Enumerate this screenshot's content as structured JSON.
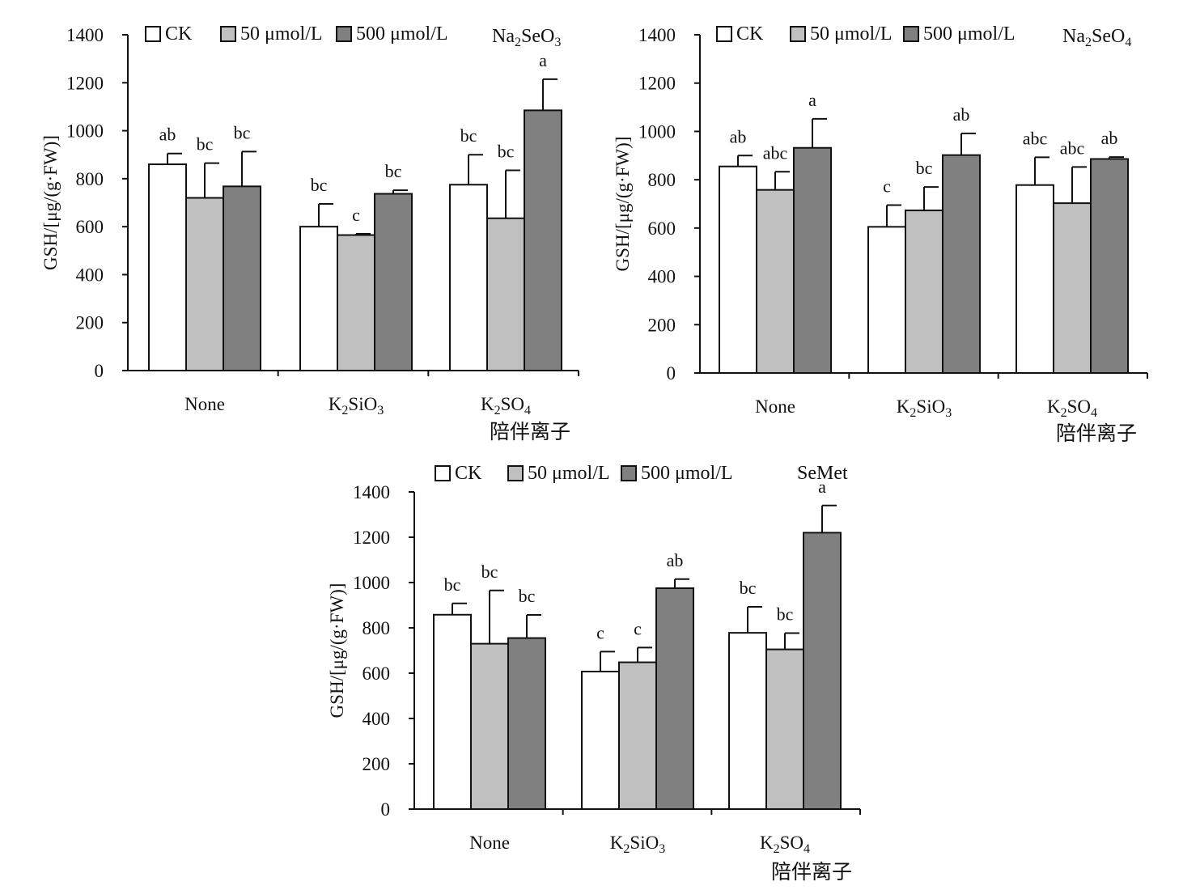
{
  "chart_data": [
    {
      "type": "bar",
      "title": "Na2SeO3",
      "ylabel": "GSH/[μg/(g·FW)]",
      "xlabel": "陪伴离子",
      "ylim": [
        0,
        1400
      ],
      "yticks": [
        0,
        200,
        400,
        600,
        800,
        1000,
        1200,
        1400
      ],
      "categories": [
        "None",
        "K2SiO3",
        "K2SO4"
      ],
      "grid": false,
      "legend": "top-left",
      "series": [
        {
          "name": "CK",
          "values": [
            860,
            600,
            775
          ],
          "errors": [
            45,
            95,
            125
          ],
          "labels": [
            "ab",
            "bc",
            "bc"
          ],
          "color": "#ffffff"
        },
        {
          "name": "50 μmol/L",
          "values": [
            720,
            565,
            635
          ],
          "errors": [
            145,
            5,
            200
          ],
          "labels": [
            "bc",
            "c",
            "bc"
          ],
          "color": "#c0c0c0"
        },
        {
          "name": "500 μmol/L",
          "values": [
            768,
            737,
            1085
          ],
          "errors": [
            145,
            15,
            130
          ],
          "labels": [
            "bc",
            "bc",
            "a"
          ],
          "color": "#808080"
        }
      ]
    },
    {
      "type": "bar",
      "title": "Na2SeO4",
      "ylabel": "GSH/[μg/(g·FW)]",
      "xlabel": "陪伴离子",
      "ylim": [
        0,
        1400
      ],
      "yticks": [
        0,
        200,
        400,
        600,
        800,
        1000,
        1200,
        1400
      ],
      "categories": [
        "None",
        "K2SiO3",
        "K2SO4"
      ],
      "grid": false,
      "legend": "top-left",
      "series": [
        {
          "name": "CK",
          "values": [
            855,
            605,
            778
          ],
          "errors": [
            45,
            90,
            115
          ],
          "labels": [
            "ab",
            "c",
            "abc"
          ],
          "color": "#ffffff"
        },
        {
          "name": "50 μmol/L",
          "values": [
            758,
            673,
            703
          ],
          "errors": [
            75,
            97,
            150
          ],
          "labels": [
            "abc",
            "bc",
            "abc"
          ],
          "color": "#c0c0c0"
        },
        {
          "name": "500 μmol/L",
          "values": [
            932,
            902,
            886
          ],
          "errors": [
            120,
            90,
            8
          ],
          "labels": [
            "a",
            "ab",
            "ab"
          ],
          "color": "#808080"
        }
      ]
    },
    {
      "type": "bar",
      "title": "SeMet",
      "ylabel": "GSH/[μg/(g·FW)]",
      "xlabel": "陪伴离子",
      "ylim": [
        0,
        1400
      ],
      "yticks": [
        0,
        200,
        400,
        600,
        800,
        1000,
        1200,
        1400
      ],
      "categories": [
        "None",
        "K2SiO3",
        "K2SO4"
      ],
      "grid": false,
      "legend": "top-left",
      "series": [
        {
          "name": "CK",
          "values": [
            858,
            607,
            778
          ],
          "errors": [
            50,
            88,
            115
          ],
          "labels": [
            "bc",
            "c",
            "bc"
          ],
          "color": "#ffffff"
        },
        {
          "name": "50 μmol/L",
          "values": [
            730,
            648,
            705
          ],
          "errors": [
            235,
            65,
            72
          ],
          "labels": [
            "bc",
            "c",
            "bc"
          ],
          "color": "#c0c0c0"
        },
        {
          "name": "500 μmol/L",
          "values": [
            755,
            975,
            1220
          ],
          "errors": [
            102,
            40,
            120
          ],
          "labels": [
            "bc",
            "ab",
            "a"
          ],
          "color": "#808080"
        }
      ]
    }
  ]
}
